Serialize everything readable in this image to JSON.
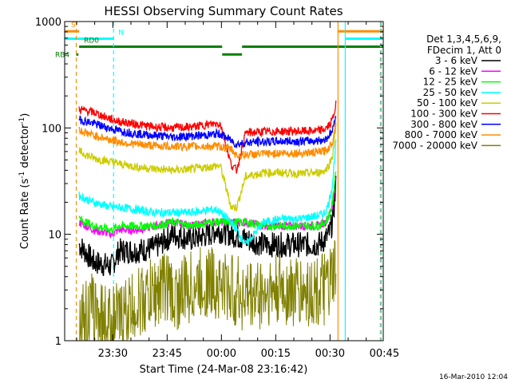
{
  "chart_data": {
    "type": "line",
    "title": "HESSI Observing Summary Count Rates",
    "xlabel": "Start Time (24-Mar-08 23:16:42)",
    "ylabel_main": "Count Rate (s",
    "ylabel_exp1": "-1",
    "ylabel_mid": " detector",
    "ylabel_exp2": "-1",
    "ylabel_end": ")",
    "yscale": "log",
    "ylim": [
      1,
      1000
    ],
    "xlim_minutes": [
      0,
      88
    ],
    "x_ticks": [
      {
        "label": "23:30",
        "minutes": 13.3
      },
      {
        "label": "23:45",
        "minutes": 28.3
      },
      {
        "label": "00:00",
        "minutes": 43.3
      },
      {
        "label": "00:15",
        "minutes": 58.3
      },
      {
        "label": "00:30",
        "minutes": 73.3
      },
      {
        "label": "00:45",
        "minutes": 88.3
      }
    ],
    "y_ticks": [
      {
        "label": "1",
        "value": 1
      },
      {
        "label": "10",
        "value": 10
      },
      {
        "label": "100",
        "value": 100
      },
      {
        "label": "1000",
        "value": 1000
      }
    ],
    "legend": {
      "header1": "Det 1,3,4,5,6,9,",
      "header2": "FDecim 1, Att 0",
      "placement": "right"
    },
    "series": [
      {
        "name": "3 - 6 keV",
        "color": "#000000",
        "x": [
          4,
          8,
          13,
          15,
          20,
          25,
          30,
          35,
          40,
          42,
          46,
          50,
          55,
          60,
          65,
          70,
          72,
          73,
          74,
          75
        ],
        "y": [
          8,
          5.5,
          5,
          7,
          7,
          7.5,
          10,
          9,
          10,
          11,
          10,
          9,
          8,
          8,
          8,
          8,
          9,
          10,
          13,
          30
        ]
      },
      {
        "name": "6 - 12 keV",
        "color": "#ff00ff",
        "x": [
          4,
          8,
          13,
          15,
          20,
          25,
          30,
          35,
          40,
          42,
          46,
          50,
          55,
          60,
          65,
          70,
          72,
          73,
          74,
          75
        ],
        "y": [
          13,
          11,
          10,
          11,
          11,
          12,
          13,
          12,
          13,
          13,
          13,
          13,
          12,
          12,
          12,
          12,
          13,
          15,
          18,
          40
        ]
      },
      {
        "name": "12 - 25 keV",
        "color": "#00ff00",
        "x": [
          4,
          8,
          13,
          15,
          20,
          25,
          30,
          35,
          40,
          42,
          46,
          50,
          55,
          60,
          65,
          70,
          72,
          73,
          74,
          75
        ],
        "y": [
          14,
          12,
          11,
          12,
          12,
          12,
          13,
          12,
          13,
          13,
          13,
          13,
          12,
          12,
          12,
          12,
          13,
          15,
          20,
          45
        ]
      },
      {
        "name": "25 - 50 keV",
        "color": "#00ffff",
        "x": [
          4,
          8,
          13,
          15,
          20,
          25,
          30,
          35,
          40,
          42,
          43,
          46,
          47.5,
          50,
          55,
          60,
          65,
          70,
          72,
          73,
          74,
          75
        ],
        "y": [
          23,
          20,
          18,
          18,
          17,
          16,
          16,
          16,
          17,
          17,
          16,
          13,
          11,
          8,
          13,
          14,
          14,
          15,
          16,
          20,
          30,
          80
        ]
      },
      {
        "name": "50 - 100 keV",
        "color": "#cccc00",
        "x": [
          4,
          8,
          13,
          15,
          20,
          25,
          30,
          35,
          40,
          42,
          43,
          46,
          47.5,
          50,
          55,
          60,
          65,
          70,
          72,
          73,
          74,
          75
        ],
        "y": [
          60,
          52,
          48,
          46,
          43,
          41,
          40,
          41,
          43,
          44,
          44,
          18,
          18,
          35,
          38,
          38,
          37,
          38,
          40,
          45,
          55,
          110
        ]
      },
      {
        "name": "100 - 300 keV",
        "color": "#ff0000",
        "x": [
          4,
          8,
          13,
          15,
          20,
          25,
          30,
          35,
          40,
          42,
          43,
          46,
          47.5,
          50,
          55,
          60,
          65,
          70,
          72,
          73,
          74,
          75
        ],
        "y": [
          150,
          140,
          120,
          115,
          108,
          102,
          100,
          102,
          108,
          110,
          110,
          45,
          40,
          90,
          92,
          93,
          93,
          94,
          98,
          105,
          120,
          170
        ]
      },
      {
        "name": "300 - 800 keV",
        "color": "#0000ff",
        "x": [
          4,
          8,
          13,
          15,
          20,
          25,
          30,
          35,
          40,
          42,
          43,
          46,
          47.5,
          50,
          55,
          60,
          65,
          70,
          72,
          73,
          74,
          75
        ],
        "y": [
          120,
          110,
          98,
          94,
          88,
          85,
          82,
          84,
          86,
          88,
          88,
          76,
          70,
          73,
          74,
          75,
          75,
          76,
          78,
          85,
          95,
          140
        ]
      },
      {
        "name": "800 - 7000 keV",
        "color": "#ff8c00",
        "x": [
          4,
          8,
          13,
          15,
          20,
          25,
          30,
          35,
          40,
          42,
          43,
          46,
          47.5,
          50,
          55,
          60,
          65,
          70,
          72,
          73,
          74,
          75
        ],
        "y": [
          95,
          85,
          77,
          74,
          70,
          68,
          67,
          67,
          67,
          67,
          67,
          63,
          55,
          56,
          57,
          58,
          58,
          59,
          61,
          65,
          75,
          120
        ]
      },
      {
        "name": "7000 - 20000 keV",
        "color": "#808000",
        "x": [
          4,
          8,
          10,
          13,
          15,
          20,
          25,
          28,
          30,
          35,
          40,
          42,
          43,
          46,
          50,
          55,
          60,
          65,
          70,
          72,
          73,
          74,
          75
        ],
        "y": [
          1.5,
          2,
          1.7,
          1.5,
          1.6,
          2.2,
          2.8,
          3.5,
          2.5,
          3.2,
          3.6,
          3.4,
          3.3,
          3.0,
          2.6,
          2.8,
          3.0,
          2.8,
          2.9,
          3.0,
          3.2,
          3.6,
          5
        ]
      }
    ],
    "flag_lines": [
      {
        "label": "S",
        "color": "#ff8c00",
        "segments": [
          [
            0,
            4
          ],
          [
            75.5,
            88
          ]
        ],
        "level": 810
      },
      {
        "label": "N",
        "color": "#00ffff",
        "segments": [
          [
            0,
            13.5
          ],
          [
            77.5,
            88
          ]
        ],
        "level": 690
      },
      {
        "label": "RD0",
        "color": "#008000",
        "segments": [
          [
            4,
            43.5
          ],
          [
            49,
            88
          ]
        ],
        "level": 580
      },
      {
        "label": "RB4",
        "color": "#008000",
        "segments": [
          [
            3.2,
            3.8
          ],
          [
            43.5,
            49
          ]
        ],
        "level": 490
      }
    ],
    "vlines": [
      {
        "x": 3.2,
        "color": "#ff8c00",
        "dash": true
      },
      {
        "x": 13.5,
        "color": "#00ffff",
        "dash": true
      },
      {
        "x": 75.5,
        "color": "#ff8c00",
        "dash": false
      },
      {
        "x": 77.5,
        "color": "#00ffff",
        "dash": false
      },
      {
        "x": 87.2,
        "color": "#00ffff",
        "dash": true
      },
      {
        "x": 87.4,
        "color": "#ff8c00",
        "dash": true
      }
    ]
  },
  "footer": {
    "timestamp": "16-Mar-2010 12:04"
  }
}
